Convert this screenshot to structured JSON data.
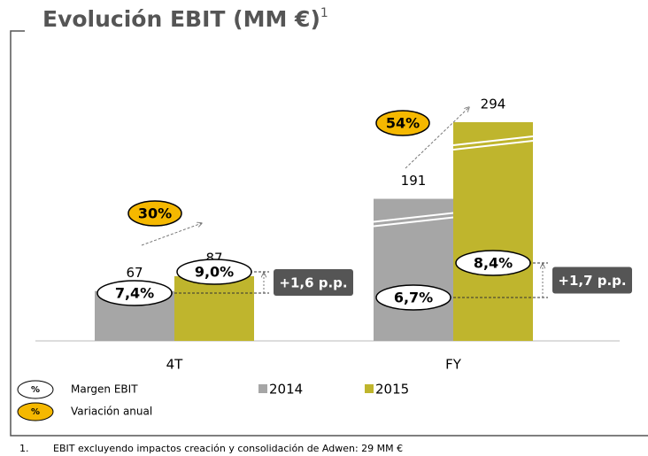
{
  "chart_data": {
    "type": "bar",
    "title": "Evolución EBIT (MM €)",
    "title_note": "1",
    "categories": [
      "4T",
      "FY"
    ],
    "series": [
      {
        "name": "2014",
        "color": "#a6a6a6",
        "values": [
          67,
          191
        ]
      },
      {
        "name": "2015",
        "color": "#bfb52d",
        "values": [
          87,
          294
        ]
      }
    ],
    "margin_labels": [
      [
        "7,4%",
        "9,0%"
      ],
      [
        "6,7%",
        "8,4%"
      ]
    ],
    "margin_change": [
      "+1,6 p.p.",
      "+1,7 p.p."
    ],
    "annual_change": [
      "30%",
      "54%"
    ],
    "note_symbol": "%",
    "legend_notes": [
      "Margen EBIT",
      "Variación anual"
    ],
    "footnote": {
      "number": "1.",
      "text": "EBIT excluyendo impactos creación y consolidación de Adwen: 29 MM €"
    }
  }
}
